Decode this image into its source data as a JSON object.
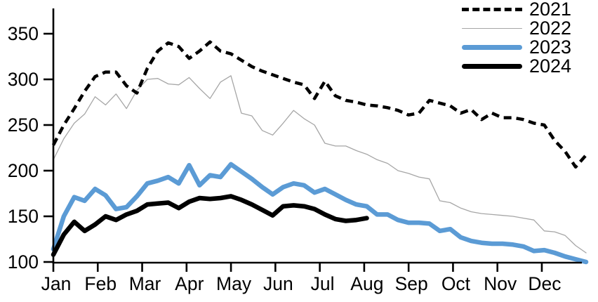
{
  "chart_data": {
    "type": "line",
    "title": "",
    "xlabel": "",
    "ylabel": "",
    "x_resolution": "weekly",
    "months": [
      "Jan",
      "Feb",
      "Mar",
      "Apr",
      "May",
      "Jun",
      "Jul",
      "Aug",
      "Sep",
      "Oct",
      "Nov",
      "Dec"
    ],
    "yticks": [
      100,
      150,
      200,
      250,
      300,
      350
    ],
    "ylim": [
      100,
      350
    ],
    "grid": false,
    "legend_position": "top-right",
    "axis_color": "#000000",
    "background_color": "#ffffff",
    "draw_order": [
      1,
      0,
      2,
      3
    ],
    "series": [
      {
        "name": "2021",
        "color": "#000000",
        "style": "dashed",
        "width": 4.5,
        "dash": "11,7",
        "values": [
          228,
          250,
          268,
          287,
          303,
          308,
          308,
          293,
          285,
          312,
          331,
          340,
          336,
          323,
          331,
          341,
          331,
          328,
          321,
          314,
          309,
          305,
          301,
          297,
          294,
          279,
          298,
          282,
          277,
          275,
          272,
          271,
          269,
          266,
          261,
          263,
          277,
          274,
          271,
          263,
          267,
          256,
          263,
          258,
          258,
          256,
          252,
          250,
          233,
          221,
          204,
          217
        ]
      },
      {
        "name": "2022",
        "color": "#a6a6a6",
        "style": "solid",
        "width": 1.3,
        "dash": "",
        "values": [
          212,
          235,
          252,
          262,
          281,
          272,
          284,
          268,
          288,
          300,
          301,
          295,
          294,
          302,
          290,
          279,
          297,
          304,
          263,
          260,
          244,
          239,
          252,
          266,
          257,
          250,
          230,
          227,
          227,
          222,
          218,
          212,
          208,
          200,
          197,
          193,
          191,
          167,
          165,
          159,
          155,
          153,
          152,
          151,
          150,
          148,
          146,
          134,
          133,
          129,
          118,
          110
        ]
      },
      {
        "name": "2023",
        "color": "#5b9bd5",
        "style": "solid",
        "width": 6.5,
        "dash": "",
        "values": [
          114,
          150,
          171,
          167,
          180,
          173,
          158,
          160,
          172,
          186,
          189,
          193,
          186,
          206,
          184,
          195,
          193,
          207,
          199,
          191,
          182,
          174,
          182,
          186,
          184,
          176,
          180,
          174,
          168,
          163,
          161,
          152,
          152,
          146,
          143,
          143,
          142,
          134,
          136,
          127,
          123,
          121,
          120,
          120,
          119,
          117,
          112,
          113,
          110,
          106,
          103,
          100
        ]
      },
      {
        "name": "2024",
        "color": "#000000",
        "style": "solid",
        "width": 6.5,
        "dash": "",
        "values": [
          108,
          130,
          144,
          134,
          141,
          150,
          146,
          152,
          156,
          163,
          164,
          165,
          159,
          166,
          170,
          169,
          170,
          172,
          168,
          163,
          157,
          151,
          161,
          162,
          161,
          158,
          152,
          147,
          145,
          146,
          148
        ]
      }
    ]
  },
  "legend": {
    "items": [
      {
        "label": "2021"
      },
      {
        "label": "2022"
      },
      {
        "label": "2023"
      },
      {
        "label": "2024"
      }
    ]
  }
}
